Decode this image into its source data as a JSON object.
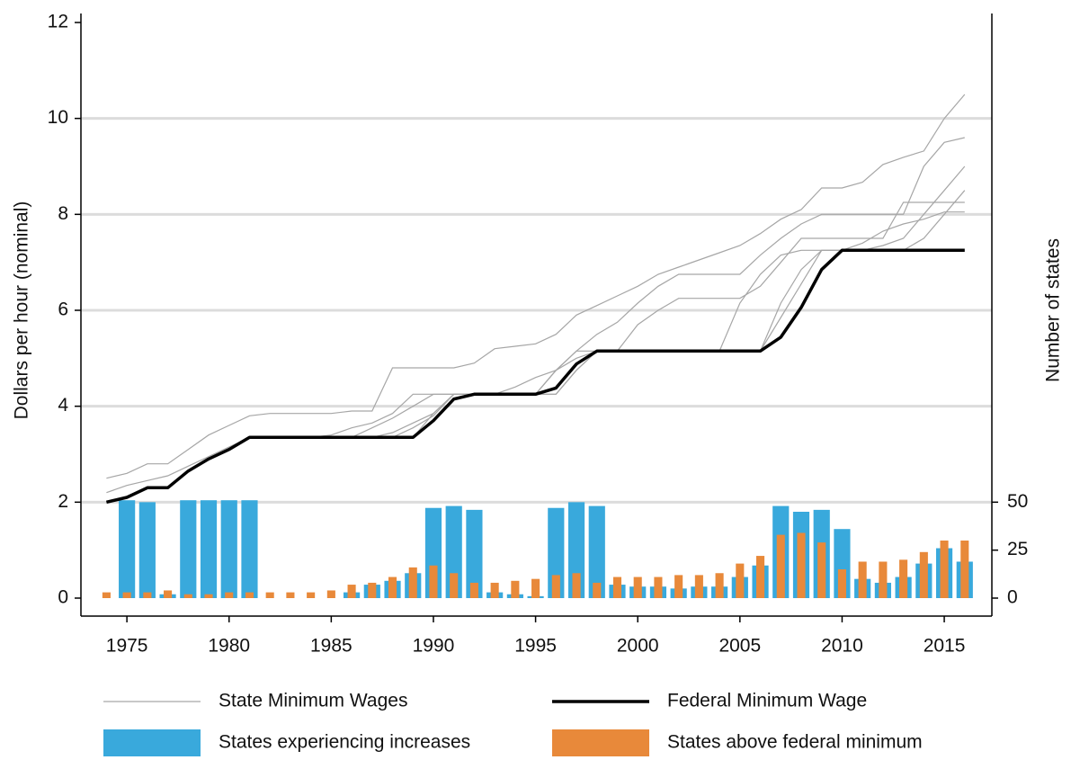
{
  "chart_data": {
    "type": "combo",
    "y_label": "Dollars per hour (nominal)",
    "y2_label": "Number of states",
    "x": [
      1974,
      1975,
      1976,
      1977,
      1978,
      1979,
      1980,
      1981,
      1982,
      1983,
      1984,
      1985,
      1986,
      1987,
      1988,
      1989,
      1990,
      1991,
      1992,
      1993,
      1994,
      1995,
      1996,
      1997,
      1998,
      1999,
      2000,
      2001,
      2002,
      2003,
      2004,
      2005,
      2006,
      2007,
      2008,
      2009,
      2010,
      2011,
      2012,
      2013,
      2014,
      2015,
      2016
    ],
    "xlim": [
      1972.75,
      2017.33
    ],
    "xticks": [
      1975,
      1980,
      1985,
      1990,
      1995,
      2000,
      2005,
      2010,
      2015
    ],
    "ylim": [
      0,
      12
    ],
    "yticks": [
      0,
      2,
      4,
      6,
      8,
      10,
      12
    ],
    "y2lim": [
      0,
      300
    ],
    "y2ticks": [
      0,
      25,
      50
    ],
    "grid": true,
    "series": [
      {
        "name": "State Minimum Wages",
        "color": "#a6a6a6",
        "lines": [
          [
            2.5,
            2.6,
            2.8,
            2.8,
            3.1,
            3.4,
            3.6,
            3.8,
            3.85,
            3.85,
            3.85,
            3.85,
            3.9,
            3.9,
            4.8,
            4.8,
            4.8,
            4.8,
            4.9,
            5.2,
            5.25,
            5.3,
            5.5,
            5.9,
            6.1,
            6.3,
            6.5,
            6.75,
            6.9,
            7.05,
            7.2,
            7.35,
            7.6,
            7.9,
            8.1,
            8.55,
            8.55,
            8.67,
            9.04,
            9.19,
            9.32,
            10.0,
            10.5
          ],
          [
            2.2,
            2.35,
            2.45,
            2.55,
            2.75,
            2.95,
            3.15,
            3.35,
            3.35,
            3.35,
            3.35,
            3.4,
            3.55,
            3.65,
            3.85,
            4.25,
            4.25,
            4.25,
            4.25,
            4.25,
            4.4,
            4.6,
            4.75,
            5.15,
            5.5,
            5.75,
            6.15,
            6.5,
            6.75,
            6.75,
            6.75,
            6.75,
            7.15,
            7.5,
            7.8,
            8.0,
            8.0,
            8.0,
            8.0,
            8.0,
            9.0,
            9.5,
            9.6
          ],
          [
            2.0,
            2.1,
            2.3,
            2.3,
            2.65,
            2.9,
            3.1,
            3.35,
            3.35,
            3.35,
            3.35,
            3.35,
            3.35,
            3.55,
            3.75,
            4.0,
            4.25,
            4.25,
            4.25,
            4.25,
            4.25,
            4.25,
            4.75,
            5.0,
            5.15,
            5.15,
            5.7,
            6.0,
            6.25,
            6.25,
            6.25,
            6.25,
            6.5,
            7.0,
            7.5,
            7.5,
            7.5,
            7.5,
            7.5,
            8.25,
            8.25,
            8.25,
            8.25
          ],
          [
            2.0,
            2.1,
            2.3,
            2.3,
            2.65,
            2.9,
            3.1,
            3.35,
            3.35,
            3.35,
            3.35,
            3.35,
            3.35,
            3.35,
            3.45,
            3.65,
            3.85,
            4.25,
            4.25,
            4.25,
            4.25,
            4.25,
            4.25,
            4.75,
            5.15,
            5.15,
            5.15,
            5.15,
            5.15,
            5.15,
            5.15,
            5.15,
            5.15,
            6.15,
            6.85,
            7.25,
            7.25,
            7.25,
            7.35,
            7.5,
            8.0,
            8.5,
            9.0
          ],
          [
            2.0,
            2.1,
            2.3,
            2.3,
            2.65,
            2.9,
            3.1,
            3.35,
            3.35,
            3.35,
            3.35,
            3.35,
            3.35,
            3.35,
            3.35,
            3.55,
            3.8,
            4.25,
            4.25,
            4.25,
            4.25,
            4.25,
            4.75,
            5.15,
            5.15,
            5.15,
            5.15,
            5.15,
            5.15,
            5.15,
            5.15,
            6.15,
            6.75,
            7.15,
            7.25,
            7.25,
            7.25,
            7.4,
            7.65,
            7.8,
            7.9,
            8.05,
            8.05
          ],
          [
            2.0,
            2.1,
            2.3,
            2.3,
            2.65,
            2.9,
            3.1,
            3.35,
            3.35,
            3.35,
            3.35,
            3.35,
            3.35,
            3.35,
            3.35,
            3.35,
            3.85,
            4.25,
            4.25,
            4.25,
            4.25,
            4.25,
            4.25,
            4.75,
            5.15,
            5.15,
            5.15,
            5.15,
            5.15,
            5.15,
            5.15,
            5.15,
            5.15,
            5.85,
            6.55,
            7.25,
            7.25,
            7.25,
            7.25,
            7.25,
            7.5,
            8.0,
            8.5
          ]
        ]
      },
      {
        "name": "Federal Minimum Wage",
        "color": "#000000",
        "values": [
          2.0,
          2.1,
          2.3,
          2.3,
          2.65,
          2.9,
          3.1,
          3.35,
          3.35,
          3.35,
          3.35,
          3.35,
          3.35,
          3.35,
          3.35,
          3.35,
          3.7,
          4.15,
          4.25,
          4.25,
          4.25,
          4.25,
          4.38,
          4.88,
          5.15,
          5.15,
          5.15,
          5.15,
          5.15,
          5.15,
          5.15,
          5.15,
          5.15,
          5.44,
          6.06,
          6.85,
          7.25,
          7.25,
          7.25,
          7.25,
          7.25,
          7.25,
          7.25
        ]
      },
      {
        "name": "States experiencing increases",
        "color": "#39a9dc",
        "axis": "y2",
        "values": [
          0,
          51,
          50,
          2,
          51,
          51,
          51,
          51,
          0,
          0,
          0,
          0,
          3,
          7,
          9,
          13,
          47,
          48,
          46,
          3,
          2,
          1,
          47,
          50,
          48,
          7,
          6,
          6,
          5,
          6,
          6,
          11,
          17,
          48,
          45,
          46,
          36,
          10,
          8,
          11,
          18,
          26,
          19
        ]
      },
      {
        "name": "States above federal minimum",
        "color": "#e8893a",
        "axis": "y2",
        "values": [
          3,
          3,
          3,
          4,
          2,
          2,
          3,
          3,
          3,
          3,
          3,
          4,
          7,
          8,
          11,
          16,
          17,
          13,
          8,
          8,
          9,
          10,
          12,
          13,
          8,
          11,
          11,
          11,
          12,
          12,
          13,
          18,
          22,
          33,
          34,
          29,
          15,
          19,
          19,
          20,
          24,
          30,
          30
        ]
      }
    ]
  }
}
